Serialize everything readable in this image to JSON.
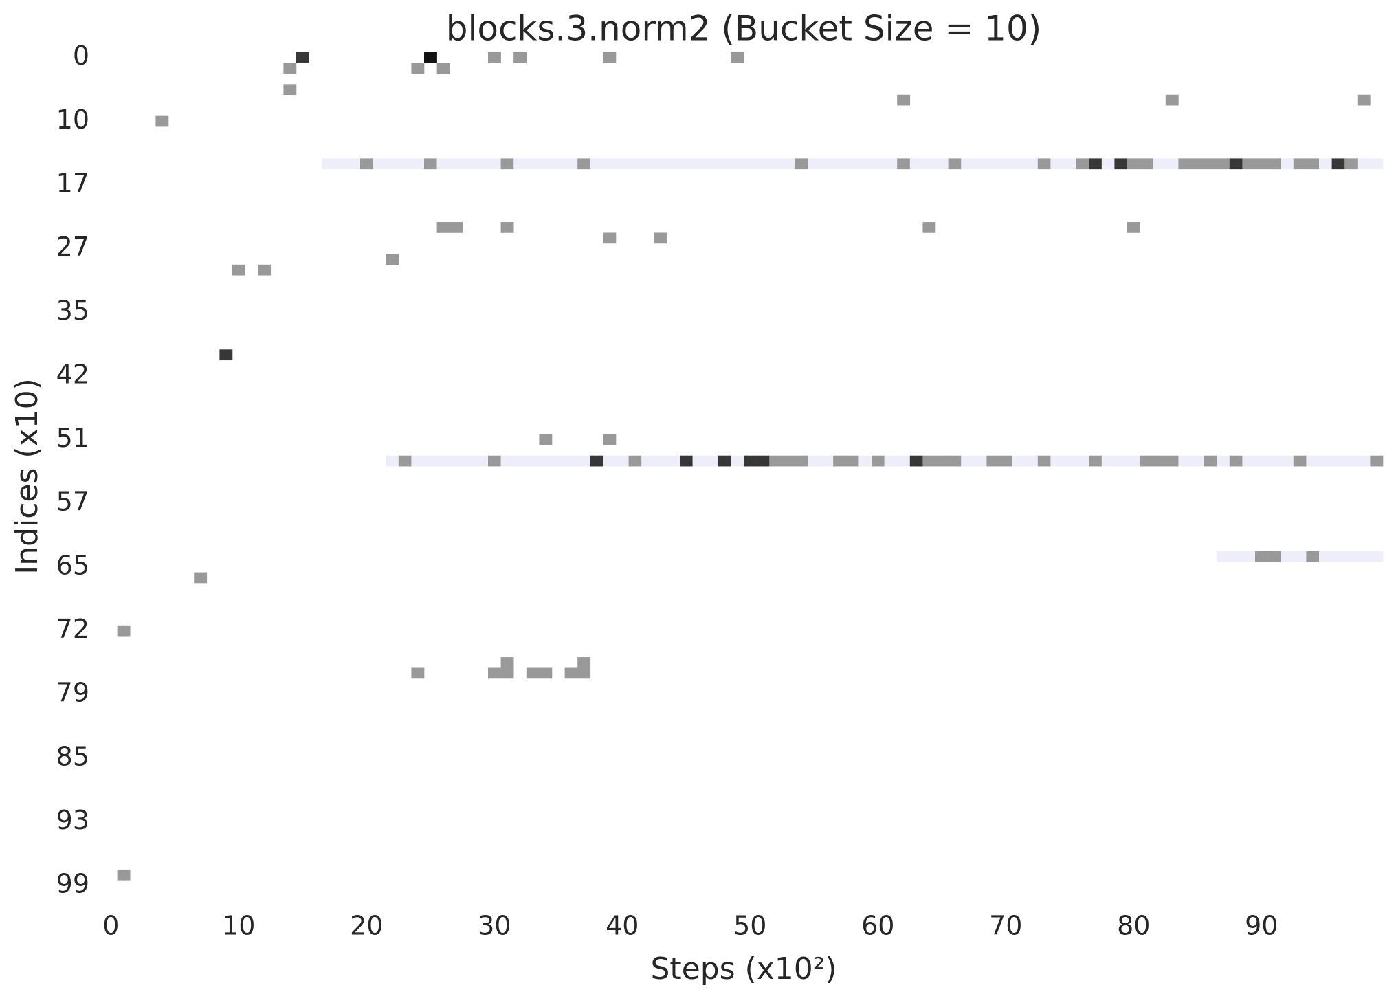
{
  "chart_data": {
    "type": "heatmap",
    "title": "blocks.3.norm2 (Bucket Size = 10)",
    "xlabel": "Steps (x10²)",
    "ylabel": "Indices (x10)",
    "categories": [
      "0",
      null,
      null,
      null,
      null,
      null,
      "10",
      null,
      null,
      null,
      null,
      null,
      "17",
      null,
      null,
      null,
      null,
      null,
      "27",
      null,
      null,
      null,
      null,
      null,
      "35",
      null,
      null,
      null,
      null,
      null,
      "42",
      null,
      null,
      null,
      null,
      null,
      "51",
      null,
      null,
      null,
      null,
      null,
      "57",
      null,
      null,
      null,
      null,
      null,
      "65",
      null,
      null,
      null,
      null,
      null,
      "72",
      null,
      null,
      null,
      null,
      null,
      "79",
      null,
      null,
      null,
      null,
      null,
      "85",
      null,
      null,
      null,
      null,
      null,
      "93",
      null,
      null,
      null,
      null,
      null,
      "99",
      null
    ],
    "xlim": [
      -0.5,
      99.5
    ],
    "xticks": [
      0,
      10,
      20,
      30,
      40,
      50,
      60,
      70,
      80,
      90
    ],
    "series": [
      {
        "y": 0,
        "x": [
          15,
          25,
          30,
          32,
          39,
          49
        ],
        "values": [
          9,
          10,
          5,
          5,
          5,
          5
        ]
      },
      {
        "y": 1,
        "x": [
          14,
          24,
          26
        ],
        "values": [
          5,
          5,
          5
        ]
      },
      {
        "y": 3,
        "x": [
          14
        ],
        "values": [
          5
        ]
      },
      {
        "y": 4,
        "x": [
          62,
          83,
          98
        ],
        "values": [
          5,
          5,
          5
        ]
      },
      {
        "y": 6,
        "x": [
          4
        ],
        "values": [
          5
        ]
      },
      {
        "y": 10,
        "x": [
          17,
          18,
          19,
          20,
          21,
          22,
          23,
          24,
          25,
          26,
          27,
          28,
          29,
          30,
          31,
          32,
          33,
          34,
          35,
          36,
          37,
          38,
          39,
          40,
          41,
          42,
          43,
          44,
          45,
          46,
          47,
          48,
          49,
          50,
          51,
          52,
          53,
          54,
          55,
          56,
          57,
          58,
          59,
          60,
          61,
          62,
          63,
          64,
          65,
          66,
          67,
          68,
          69,
          70,
          71,
          72,
          73,
          74,
          75,
          76,
          77,
          78,
          79,
          80,
          81,
          82,
          83,
          84,
          85,
          86,
          87,
          88,
          89,
          90,
          91,
          92,
          93,
          94,
          95,
          96,
          97,
          98,
          99
        ],
        "values": [
          1,
          1,
          1,
          5,
          1,
          1,
          1,
          1,
          5,
          1,
          1,
          1,
          1,
          1,
          5,
          1,
          1,
          1,
          1,
          1,
          5,
          1,
          1,
          1,
          1,
          1,
          1,
          1,
          1,
          1,
          1,
          1,
          1,
          1,
          1,
          1,
          1,
          5,
          1,
          1,
          1,
          1,
          1,
          1,
          1,
          5,
          1,
          1,
          1,
          5,
          1,
          1,
          1,
          1,
          1,
          1,
          5,
          1,
          1,
          5,
          9,
          1,
          9,
          5,
          5,
          1,
          1,
          5,
          5,
          5,
          5,
          9,
          5,
          5,
          5,
          1,
          5,
          5,
          1,
          9,
          5,
          1,
          1
        ]
      },
      {
        "y": 16,
        "x": [
          26,
          27,
          31,
          64,
          80
        ],
        "values": [
          5,
          5,
          5,
          5,
          5
        ]
      },
      {
        "y": 17,
        "x": [
          39,
          43
        ],
        "values": [
          5,
          5
        ]
      },
      {
        "y": 19,
        "x": [
          22
        ],
        "values": [
          5
        ]
      },
      {
        "y": 20,
        "x": [
          10,
          12
        ],
        "values": [
          5,
          5
        ]
      },
      {
        "y": 28,
        "x": [
          9
        ],
        "values": [
          9
        ]
      },
      {
        "y": 36,
        "x": [
          34,
          39
        ],
        "values": [
          5,
          5
        ]
      },
      {
        "y": 38,
        "x": [
          22,
          23,
          24,
          25,
          26,
          27,
          28,
          29,
          30,
          31,
          32,
          33,
          34,
          35,
          36,
          37,
          38,
          39,
          40,
          41,
          42,
          43,
          44,
          45,
          46,
          47,
          48,
          49,
          50,
          51,
          52,
          53,
          54,
          55,
          56,
          57,
          58,
          59,
          60,
          61,
          62,
          63,
          64,
          65,
          66,
          67,
          68,
          69,
          70,
          71,
          72,
          73,
          74,
          75,
          76,
          77,
          78,
          79,
          80,
          81,
          82,
          83,
          84,
          85,
          86,
          87,
          88,
          89,
          90,
          91,
          92,
          93,
          94,
          95,
          96,
          97,
          98,
          99
        ],
        "values": [
          1,
          5,
          1,
          1,
          1,
          1,
          1,
          1,
          5,
          1,
          1,
          1,
          1,
          1,
          1,
          1,
          9,
          1,
          1,
          5,
          1,
          1,
          1,
          9,
          1,
          1,
          9,
          1,
          9,
          9,
          5,
          5,
          5,
          1,
          1,
          5,
          5,
          1,
          5,
          1,
          1,
          9,
          5,
          5,
          5,
          1,
          1,
          5,
          5,
          1,
          1,
          5,
          1,
          1,
          1,
          5,
          1,
          1,
          1,
          5,
          5,
          5,
          1,
          1,
          5,
          1,
          5,
          1,
          1,
          1,
          1,
          5,
          1,
          1,
          1,
          1,
          1,
          5
        ]
      },
      {
        "y": 47,
        "x": [
          87,
          88,
          89,
          90,
          91,
          92,
          93,
          94,
          95,
          96,
          97,
          98,
          99
        ],
        "values": [
          1,
          1,
          1,
          5,
          5,
          1,
          1,
          5,
          1,
          1,
          1,
          1,
          1
        ]
      },
      {
        "y": 49,
        "x": [
          7
        ],
        "values": [
          5
        ]
      },
      {
        "y": 54,
        "x": [
          1
        ],
        "values": [
          5
        ]
      },
      {
        "y": 57,
        "x": [
          31,
          37
        ],
        "values": [
          5,
          5
        ]
      },
      {
        "y": 58,
        "x": [
          24,
          30,
          31,
          33,
          34,
          36,
          37
        ],
        "values": [
          5,
          5,
          5,
          5,
          5,
          5,
          5
        ]
      },
      {
        "y": 77,
        "x": [
          1
        ],
        "values": [
          5
        ]
      }
    ]
  }
}
